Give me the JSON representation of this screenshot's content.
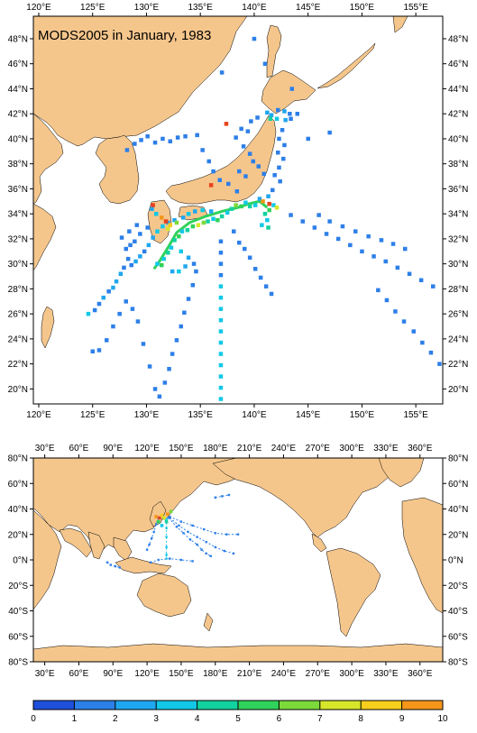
{
  "title": "MODS2005 in January, 1983",
  "colors": {
    "land": "#f5c68c",
    "ocean": "#ffffff",
    "frame": "#000000"
  },
  "top_map": {
    "lon_ticks": [
      "120°E",
      "125°E",
      "130°E",
      "135°E",
      "140°E",
      "145°E",
      "150°E",
      "155°E"
    ],
    "lon_values": [
      120,
      125,
      130,
      135,
      140,
      145,
      150,
      155
    ],
    "lat_ticks": [
      "20°N",
      "22°N",
      "24°N",
      "26°N",
      "28°N",
      "30°N",
      "32°N",
      "34°N",
      "36°N",
      "38°N",
      "40°N",
      "42°N",
      "44°N",
      "46°N",
      "48°N"
    ],
    "lat_values": [
      20,
      22,
      24,
      26,
      28,
      30,
      32,
      34,
      36,
      38,
      40,
      42,
      44,
      46,
      48
    ],
    "extent": {
      "lon": [
        119.5,
        157.5
      ],
      "lat": [
        18.8,
        49.8
      ]
    }
  },
  "bottom_map": {
    "lon_ticks": [
      "30°E",
      "60°E",
      "90°E",
      "120°E",
      "150°E",
      "180°E",
      "210°E",
      "240°E",
      "270°E",
      "300°E",
      "330°E",
      "360°E"
    ],
    "lon_values": [
      30,
      60,
      90,
      120,
      150,
      180,
      210,
      240,
      270,
      300,
      330,
      360
    ],
    "lat_ticks": [
      "80°N",
      "60°N",
      "40°N",
      "20°N",
      "0°N",
      "20°S",
      "40°S",
      "60°S",
      "80°S"
    ],
    "lat_values": [
      80,
      60,
      40,
      20,
      0,
      -20,
      -40,
      -60,
      -80
    ],
    "extent": {
      "lon": [
        20,
        380
      ],
      "lat": [
        -80,
        80
      ]
    }
  },
  "colorbar": {
    "labels": [
      "0",
      "1",
      "2",
      "3",
      "4",
      "5",
      "6",
      "7",
      "8",
      "9",
      "10"
    ],
    "colors": [
      "#1e50dc",
      "#2d7fe8",
      "#1fa6f0",
      "#12c8e6",
      "#12d2a0",
      "#2fd25a",
      "#7cd93a",
      "#d7e62a",
      "#f6ce1c",
      "#f5961a",
      "#e8421c"
    ]
  },
  "observations": {
    "legend_note": "",
    "cells": [
      [
        141.2,
        42.1,
        2
      ],
      [
        141.6,
        41.9,
        2
      ],
      [
        142.2,
        42.3,
        1
      ],
      [
        142.8,
        42.2,
        2
      ],
      [
        143.3,
        42.0,
        1
      ],
      [
        141.5,
        41.6,
        4
      ],
      [
        142.1,
        41.6,
        3
      ],
      [
        142.9,
        41.5,
        2
      ],
      [
        143.4,
        41.6,
        1
      ],
      [
        142.6,
        40.7,
        1
      ],
      [
        142.3,
        40.0,
        1
      ],
      [
        142.8,
        39.5,
        1
      ],
      [
        142.2,
        38.9,
        1
      ],
      [
        142.7,
        38.4,
        1
      ],
      [
        142.3,
        37.7,
        1
      ],
      [
        141.9,
        37.1,
        1
      ],
      [
        142.4,
        36.6,
        1
      ],
      [
        141.7,
        35.9,
        1
      ],
      [
        141.3,
        35.4,
        2
      ],
      [
        141.8,
        34.7,
        3
      ],
      [
        141.4,
        34.3,
        5
      ],
      [
        141.0,
        34.0,
        4
      ],
      [
        141.2,
        33.5,
        3
      ],
      [
        140.7,
        33.1,
        3
      ],
      [
        141.3,
        32.9,
        4
      ],
      [
        140.5,
        35.2,
        2
      ],
      [
        140.1,
        34.7,
        3
      ],
      [
        139.6,
        34.6,
        4
      ],
      [
        139.2,
        34.9,
        3
      ],
      [
        138.8,
        34.6,
        5
      ],
      [
        138.3,
        34.7,
        6
      ],
      [
        137.9,
        34.4,
        4
      ],
      [
        137.5,
        34.1,
        3
      ],
      [
        137.0,
        33.8,
        4
      ],
      [
        136.6,
        33.5,
        5
      ],
      [
        136.2,
        33.6,
        3
      ],
      [
        135.7,
        33.4,
        4
      ],
      [
        135.3,
        33.3,
        6
      ],
      [
        134.8,
        33.1,
        7
      ],
      [
        134.3,
        33.0,
        5
      ],
      [
        133.8,
        32.7,
        4
      ],
      [
        133.3,
        32.6,
        3
      ],
      [
        133.0,
        32.2,
        5
      ],
      [
        132.6,
        31.9,
        4
      ],
      [
        132.3,
        31.3,
        3
      ],
      [
        132.0,
        30.9,
        4
      ],
      [
        131.6,
        30.4,
        3
      ],
      [
        131.4,
        29.9,
        5
      ],
      [
        131.0,
        30.0,
        3
      ],
      [
        133.4,
        33.7,
        2
      ],
      [
        133.9,
        34.0,
        3
      ],
      [
        134.5,
        34.2,
        2
      ],
      [
        135.2,
        34.3,
        3
      ],
      [
        136.0,
        34.2,
        2
      ],
      [
        132.6,
        33.5,
        2
      ],
      [
        132.0,
        33.3,
        2
      ],
      [
        131.5,
        33.0,
        3
      ],
      [
        133.2,
        31.0,
        3
      ],
      [
        133.9,
        30.5,
        2
      ],
      [
        134.4,
        30.0,
        1
      ],
      [
        133.6,
        29.8,
        2
      ],
      [
        133.0,
        29.4,
        3
      ],
      [
        132.4,
        29.4,
        2
      ],
      [
        130.5,
        34.4,
        2
      ],
      [
        130.9,
        34.0,
        3
      ],
      [
        131.4,
        33.7,
        9
      ],
      [
        131.8,
        33.4,
        10
      ],
      [
        132.2,
        33.1,
        8
      ],
      [
        132.8,
        33.3,
        6
      ],
      [
        131.0,
        32.6,
        3
      ],
      [
        130.6,
        32.1,
        2
      ],
      [
        130.2,
        31.5,
        2
      ],
      [
        129.8,
        31.0,
        1
      ],
      [
        129.4,
        30.6,
        2
      ],
      [
        129.0,
        30.2,
        2
      ],
      [
        128.6,
        29.9,
        1
      ],
      [
        128.3,
        30.4,
        1
      ],
      [
        127.9,
        29.7,
        1
      ],
      [
        127.6,
        29.2,
        2
      ],
      [
        127.2,
        28.6,
        2
      ],
      [
        126.9,
        28.1,
        2
      ],
      [
        126.5,
        27.8,
        1
      ],
      [
        126.0,
        27.3,
        2
      ],
      [
        125.6,
        26.8,
        1
      ],
      [
        125.2,
        26.3,
        1
      ],
      [
        124.6,
        26.0,
        3
      ],
      [
        130.1,
        32.9,
        1
      ],
      [
        129.4,
        32.4,
        1
      ],
      [
        128.9,
        31.8,
        1
      ],
      [
        128.5,
        31.5,
        1
      ],
      [
        128.1,
        31.2,
        1
      ],
      [
        127.7,
        32.1,
        1
      ],
      [
        128.4,
        32.6,
        1
      ],
      [
        129.1,
        33.1,
        1
      ],
      [
        138.4,
        35.8,
        1
      ],
      [
        137.6,
        36.4,
        1
      ],
      [
        136.8,
        36.7,
        1
      ],
      [
        136.2,
        37.4,
        1
      ],
      [
        135.8,
        38.2,
        1
      ],
      [
        135.2,
        39.1,
        1
      ],
      [
        134.7,
        40.3,
        1
      ],
      [
        133.6,
        40.2,
        1
      ],
      [
        132.9,
        40.1,
        1
      ],
      [
        132.2,
        39.8,
        1
      ],
      [
        131.5,
        40.0,
        1
      ],
      [
        130.8,
        39.7,
        1
      ],
      [
        130.1,
        40.2,
        1
      ],
      [
        129.5,
        39.9,
        1
      ],
      [
        128.9,
        39.6,
        1
      ],
      [
        128.2,
        39.1,
        1
      ],
      [
        139.7,
        41.4,
        1
      ],
      [
        140.3,
        41.7,
        1
      ],
      [
        139.4,
        40.6,
        1
      ],
      [
        138.8,
        40.8,
        1
      ],
      [
        138.3,
        40.1,
        1
      ],
      [
        139.0,
        39.4,
        1
      ],
      [
        139.6,
        38.8,
        1
      ],
      [
        139.9,
        38.2,
        1
      ],
      [
        140.4,
        37.8,
        1
      ],
      [
        140.9,
        37.2,
        1
      ],
      [
        139.2,
        37.0,
        1
      ],
      [
        138.6,
        37.4,
        1
      ],
      [
        136.9,
        31.8,
        1
      ],
      [
        136.9,
        30.9,
        1
      ],
      [
        136.9,
        30.0,
        1
      ],
      [
        136.9,
        29.1,
        1
      ],
      [
        136.9,
        28.2,
        3
      ],
      [
        136.9,
        27.3,
        3
      ],
      [
        136.9,
        26.4,
        3
      ],
      [
        136.9,
        25.5,
        3
      ],
      [
        136.9,
        24.6,
        3
      ],
      [
        136.9,
        23.7,
        3
      ],
      [
        136.9,
        22.8,
        3
      ],
      [
        136.9,
        21.9,
        3
      ],
      [
        136.9,
        21.0,
        3
      ],
      [
        136.9,
        20.1,
        3
      ],
      [
        136.9,
        19.2,
        3
      ],
      [
        138.1,
        32.6,
        1
      ],
      [
        138.6,
        31.7,
        1
      ],
      [
        139.1,
        31.2,
        1
      ],
      [
        139.6,
        30.5,
        1
      ],
      [
        140.1,
        29.6,
        1
      ],
      [
        140.6,
        28.9,
        1
      ],
      [
        141.1,
        28.2,
        1
      ],
      [
        141.6,
        27.6,
        1
      ],
      [
        134.6,
        29.4,
        1
      ],
      [
        134.3,
        28.3,
        1
      ],
      [
        133.9,
        27.2,
        1
      ],
      [
        133.5,
        26.1,
        1
      ],
      [
        133.2,
        25.0,
        1
      ],
      [
        132.8,
        23.9,
        1
      ],
      [
        132.4,
        22.8,
        1
      ],
      [
        132.1,
        21.6,
        1
      ],
      [
        131.7,
        20.5,
        1
      ],
      [
        131.2,
        19.4,
        1
      ],
      [
        130.8,
        20.0,
        1
      ],
      [
        130.3,
        21.8,
        1
      ],
      [
        129.7,
        23.6,
        1
      ],
      [
        129.2,
        25.4,
        1
      ],
      [
        128.7,
        26.4,
        1
      ],
      [
        128.1,
        27.0,
        1
      ],
      [
        127.5,
        26.0,
        1
      ],
      [
        126.9,
        25.0,
        1
      ],
      [
        126.3,
        23.9,
        1
      ],
      [
        125.6,
        23.1,
        1
      ],
      [
        125.0,
        23.0,
        1
      ],
      [
        143.4,
        33.9,
        1
      ],
      [
        144.5,
        33.4,
        1
      ],
      [
        145.6,
        32.9,
        1
      ],
      [
        146.7,
        32.4,
        1
      ],
      [
        147.8,
        32.0,
        1
      ],
      [
        148.9,
        31.5,
        1
      ],
      [
        150.0,
        31.0,
        1
      ],
      [
        151.1,
        30.6,
        1
      ],
      [
        152.2,
        30.2,
        1
      ],
      [
        153.3,
        29.7,
        1
      ],
      [
        154.4,
        29.2,
        1
      ],
      [
        155.5,
        28.7,
        1
      ],
      [
        156.6,
        28.2,
        1
      ],
      [
        157.2,
        22.0,
        1
      ],
      [
        156.4,
        22.9,
        1
      ],
      [
        155.6,
        23.7,
        1
      ],
      [
        154.8,
        24.6,
        1
      ],
      [
        153.9,
        25.4,
        1
      ],
      [
        153.1,
        26.2,
        1
      ],
      [
        152.3,
        27.1,
        1
      ],
      [
        151.5,
        27.9,
        1
      ],
      [
        146.0,
        33.9,
        1
      ],
      [
        147.0,
        33.4,
        1
      ],
      [
        148.2,
        33.0,
        1
      ],
      [
        149.4,
        32.6,
        1
      ],
      [
        150.6,
        32.2,
        1
      ],
      [
        151.8,
        31.9,
        1
      ],
      [
        152.9,
        31.6,
        1
      ],
      [
        154.0,
        31.2,
        1
      ],
      [
        145.0,
        40.0,
        1
      ],
      [
        147.0,
        40.5,
        1
      ],
      [
        144.0,
        42.0,
        1
      ],
      [
        143.5,
        44.0,
        1
      ],
      [
        137.0,
        45.3,
        1
      ],
      [
        141.0,
        46.0,
        1
      ],
      [
        140.0,
        48.0,
        1
      ],
      [
        136.0,
        36.3,
        10
      ],
      [
        137.4,
        41.2,
        10
      ],
      [
        130.6,
        34.7,
        10
      ],
      [
        132.0,
        32.8,
        7
      ],
      [
        140.8,
        35.0,
        9
      ],
      [
        141.4,
        34.8,
        10
      ],
      [
        142.1,
        34.5,
        7
      ]
    ],
    "track_japan": [
      [
        141.2,
        34.5
      ],
      [
        140.5,
        35.0
      ],
      [
        139.5,
        34.8
      ],
      [
        138.5,
        34.5
      ],
      [
        137.0,
        34.2
      ],
      [
        135.5,
        33.8
      ],
      [
        134.0,
        33.3
      ],
      [
        132.8,
        32.5
      ],
      [
        132.0,
        31.3
      ],
      [
        131.2,
        30.2
      ],
      [
        130.7,
        29.6
      ]
    ]
  },
  "global_tracks": [
    {
      "color": "#2d7fe8",
      "pts": [
        [
          140,
          34
        ],
        [
          150,
          30
        ],
        [
          160,
          27
        ],
        [
          170,
          24
        ],
        [
          180,
          21
        ],
        [
          190,
          20
        ],
        [
          200,
          20
        ]
      ]
    },
    {
      "color": "#2d7fe8",
      "pts": [
        [
          140,
          33
        ],
        [
          148,
          27
        ],
        [
          156,
          22
        ],
        [
          164,
          18
        ],
        [
          172,
          14
        ],
        [
          180,
          10
        ],
        [
          188,
          7
        ],
        [
          196,
          5
        ]
      ]
    },
    {
      "color": "#2d7fe8",
      "pts": [
        [
          139,
          33
        ],
        [
          146,
          26
        ],
        [
          152,
          21
        ],
        [
          158,
          16
        ],
        [
          164,
          12
        ],
        [
          168,
          8
        ],
        [
          172,
          5
        ],
        [
          176,
          3
        ]
      ]
    },
    {
      "color": "#12c8e6",
      "pts": [
        [
          137,
          32
        ],
        [
          137,
          25
        ],
        [
          137,
          18
        ],
        [
          137,
          10
        ],
        [
          137,
          4
        ],
        [
          137,
          1
        ]
      ]
    },
    {
      "color": "#2d7fe8",
      "pts": [
        [
          130,
          33
        ],
        [
          128,
          28
        ],
        [
          126,
          22
        ],
        [
          124,
          17
        ],
        [
          122,
          12
        ],
        [
          120,
          8
        ]
      ]
    },
    {
      "color": "#2d7fe8",
      "pts": [
        [
          180,
          49
        ],
        [
          186,
          50
        ],
        [
          192,
          51
        ]
      ]
    },
    {
      "color": "#2d7fe8",
      "pts": [
        [
          85,
          -2
        ],
        [
          88,
          -4
        ],
        [
          92,
          -5
        ],
        [
          96,
          -6
        ]
      ]
    },
    {
      "color": "#2d7fe8",
      "pts": [
        [
          123,
          -2
        ],
        [
          130,
          0
        ],
        [
          140,
          1
        ],
        [
          150,
          0
        ],
        [
          160,
          -1
        ]
      ]
    }
  ],
  "global_hotspot": [
    [
      128,
      34,
      9
    ],
    [
      131,
      33,
      10
    ],
    [
      133,
      35,
      8
    ],
    [
      135,
      33,
      7
    ],
    [
      138,
      36,
      9
    ],
    [
      141,
      38,
      6
    ],
    [
      130,
      30,
      5
    ],
    [
      137,
      30,
      4
    ],
    [
      133,
      27,
      3
    ]
  ]
}
